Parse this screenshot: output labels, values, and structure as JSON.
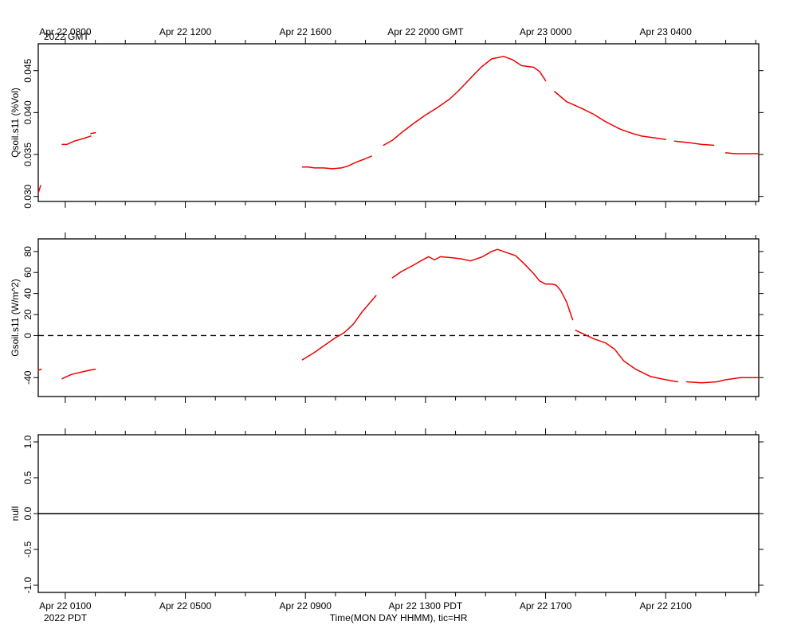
{
  "time_axis": {
    "x_range_hours_pdt": [
      -0.9,
      23.1
    ],
    "top_labels": [
      {
        "t": 0,
        "text": "Apr 22 0800"
      },
      {
        "t": 4,
        "text": "Apr 22 1200"
      },
      {
        "t": 8,
        "text": "Apr 22 1600"
      },
      {
        "t": 12,
        "text": "Apr 22 2000 GMT"
      },
      {
        "t": 16,
        "text": "Apr 23 0000"
      },
      {
        "t": 20,
        "text": "Apr 23 0400"
      }
    ],
    "top_year": "2022 GMT",
    "bottom_labels": [
      {
        "t": 0,
        "text": "Apr 22 0100"
      },
      {
        "t": 4,
        "text": "Apr 22 0500"
      },
      {
        "t": 8,
        "text": "Apr 22 0900"
      },
      {
        "t": 12,
        "text": "Apr 22 1300 PDT"
      },
      {
        "t": 16,
        "text": "Apr 22 1700"
      },
      {
        "t": 20,
        "text": "Apr 22 2100"
      }
    ],
    "bottom_year": "2022 PDT",
    "bottom_title": "Time(MON DAY HHMM), tic=HR"
  },
  "chart_data": [
    {
      "type": "line",
      "ylabel": "Qsoil.s11 (%Vol)",
      "ylim": [
        0.0294,
        0.0482
      ],
      "yticks": [
        0.03,
        0.035,
        0.04,
        0.045
      ],
      "ytick_labels": [
        "0.030",
        "0.035",
        "0.040",
        "0.045"
      ],
      "color": "#ee0000",
      "zero_line": false,
      "segments": [
        [
          [
            -0.9,
            0.0304
          ],
          [
            -0.82,
            0.0313
          ]
        ],
        [
          [
            -0.1,
            0.0362
          ],
          [
            0.05,
            0.0362
          ],
          [
            0.3,
            0.0366
          ],
          [
            0.6,
            0.0369
          ],
          [
            0.85,
            0.0372
          ]
        ],
        [
          [
            0.85,
            0.0375
          ],
          [
            1.0,
            0.0376
          ]
        ],
        [
          [
            7.9,
            0.0335
          ],
          [
            8.1,
            0.0335
          ],
          [
            8.3,
            0.0334
          ],
          [
            8.6,
            0.0334
          ],
          [
            8.9,
            0.0333
          ],
          [
            9.2,
            0.0334
          ],
          [
            9.4,
            0.0336
          ],
          [
            9.7,
            0.0341
          ],
          [
            10.0,
            0.0345
          ],
          [
            10.2,
            0.0348
          ]
        ],
        [
          [
            10.6,
            0.0361
          ],
          [
            10.9,
            0.0367
          ],
          [
            11.2,
            0.0376
          ],
          [
            11.6,
            0.0387
          ],
          [
            12.0,
            0.0397
          ],
          [
            12.4,
            0.0406
          ],
          [
            12.8,
            0.0416
          ],
          [
            13.1,
            0.0426
          ],
          [
            13.5,
            0.0441
          ],
          [
            13.85,
            0.0454
          ],
          [
            14.2,
            0.0464
          ],
          [
            14.6,
            0.0467
          ],
          [
            14.9,
            0.0463
          ],
          [
            15.2,
            0.0456
          ],
          [
            15.6,
            0.0454
          ],
          [
            15.8,
            0.0449
          ],
          [
            16.0,
            0.0438
          ]
        ],
        [
          [
            16.3,
            0.0425
          ],
          [
            16.7,
            0.0413
          ],
          [
            17.2,
            0.0405
          ],
          [
            17.6,
            0.0398
          ],
          [
            18.0,
            0.0389
          ],
          [
            18.5,
            0.038
          ],
          [
            18.9,
            0.0375
          ],
          [
            19.2,
            0.0372
          ],
          [
            19.6,
            0.037
          ],
          [
            20.0,
            0.0368
          ]
        ],
        [
          [
            20.3,
            0.0366
          ],
          [
            20.8,
            0.0364
          ],
          [
            21.2,
            0.0362
          ],
          [
            21.6,
            0.0361
          ]
        ],
        [
          [
            22.0,
            0.0352
          ],
          [
            22.3,
            0.0351
          ],
          [
            22.7,
            0.0351
          ],
          [
            23.1,
            0.0351
          ]
        ]
      ]
    },
    {
      "type": "line",
      "ylabel": "Gsoil.s11 (W/m^2)",
      "ylim": [
        -58,
        92
      ],
      "yticks": [
        -40,
        0,
        20,
        40,
        60,
        80
      ],
      "ytick_labels": [
        "-40",
        "0",
        "20",
        "40",
        "60",
        "80"
      ],
      "color": "#ee0000",
      "zero_line": true,
      "segments": [
        [
          [
            -0.9,
            -33
          ],
          [
            -0.8,
            -32
          ]
        ],
        [
          [
            -0.1,
            -41
          ],
          [
            0.2,
            -37
          ],
          [
            0.5,
            -35
          ],
          [
            0.8,
            -33
          ],
          [
            1.0,
            -32
          ]
        ],
        [
          [
            7.9,
            -23
          ],
          [
            8.3,
            -16
          ],
          [
            8.7,
            -8
          ],
          [
            9.0,
            -2
          ],
          [
            9.3,
            3
          ],
          [
            9.6,
            11
          ],
          [
            9.9,
            23
          ],
          [
            10.2,
            33
          ],
          [
            10.35,
            38
          ]
        ],
        [
          [
            10.9,
            55
          ],
          [
            11.2,
            61
          ],
          [
            11.6,
            67
          ],
          [
            11.9,
            72
          ],
          [
            12.1,
            75
          ],
          [
            12.3,
            72
          ],
          [
            12.5,
            75
          ],
          [
            12.9,
            74
          ],
          [
            13.2,
            73
          ],
          [
            13.5,
            71
          ],
          [
            13.9,
            75
          ],
          [
            14.2,
            80
          ],
          [
            14.4,
            82
          ],
          [
            14.7,
            79
          ],
          [
            15.0,
            76
          ],
          [
            15.3,
            68
          ],
          [
            15.6,
            59
          ],
          [
            15.8,
            52
          ],
          [
            16.0,
            49
          ],
          [
            16.2,
            49
          ],
          [
            16.35,
            48
          ],
          [
            16.5,
            43
          ],
          [
            16.7,
            32
          ],
          [
            16.9,
            15
          ]
        ],
        [
          [
            17.0,
            5
          ],
          [
            17.3,
            1
          ],
          [
            17.6,
            -3
          ],
          [
            18.0,
            -7
          ],
          [
            18.3,
            -13
          ],
          [
            18.6,
            -24
          ],
          [
            19.0,
            -32
          ],
          [
            19.5,
            -39
          ],
          [
            20.0,
            -42
          ],
          [
            20.4,
            -44
          ]
        ],
        [
          [
            20.7,
            -44
          ],
          [
            21.2,
            -45
          ],
          [
            21.7,
            -44
          ],
          [
            22.0,
            -42
          ],
          [
            22.5,
            -40
          ],
          [
            23.1,
            -40
          ]
        ]
      ]
    },
    {
      "type": "line",
      "ylabel": "null",
      "ylim": [
        -1.1,
        1.1
      ],
      "yticks": [
        -1.0,
        -0.5,
        0.0,
        0.5,
        1.0
      ],
      "ytick_labels": [
        "-1.0",
        "-0.5",
        "0.0",
        "0.5",
        "1.0"
      ],
      "color": "#000000",
      "zero_line": false,
      "segments": [
        [
          [
            -0.9,
            0.0
          ],
          [
            23.1,
            0.0
          ]
        ]
      ]
    }
  ]
}
